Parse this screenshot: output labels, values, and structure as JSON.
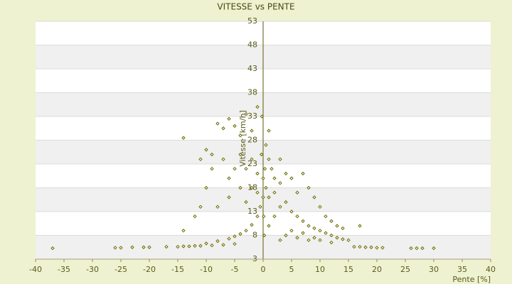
{
  "chart_data": {
    "type": "scatter",
    "title": "VITESSE vs PENTE",
    "x_label": "Pente [%]",
    "y_label": "Vitesse [km/h]",
    "color": "#6b6b00",
    "grid": true,
    "xlim": [
      -40,
      40
    ],
    "xticks": [
      -40,
      -35,
      -30,
      -25,
      -20,
      -15,
      -10,
      -5,
      0,
      5,
      10,
      15,
      20,
      25,
      30,
      35,
      40
    ],
    "ylim": [
      3,
      53
    ],
    "yticks": [
      3,
      8,
      13,
      18,
      23,
      28,
      33,
      38,
      43,
      48,
      53
    ],
    "x": [
      -37,
      -26,
      -25,
      -23,
      -21,
      -20,
      -17,
      -15,
      -14,
      -13,
      -12,
      -11,
      -9,
      -7,
      -5,
      16,
      17,
      18,
      19,
      20,
      21,
      26,
      27,
      28,
      30,
      -10,
      -8,
      -6,
      -5,
      -4,
      -3,
      -2,
      -1,
      -0.5,
      -14,
      -12,
      -11,
      -14,
      -10,
      -9,
      -8,
      -7,
      -6,
      -5,
      -4,
      -3,
      -2,
      -1,
      -0.2,
      1,
      0.5,
      -11,
      -9,
      -7,
      -6,
      -5,
      -4,
      -3,
      -2,
      -1,
      0,
      0.5,
      1,
      1.5,
      2,
      -2,
      -1,
      0,
      1,
      2,
      3,
      4,
      5,
      6,
      -3,
      -4,
      -6,
      -8,
      -10,
      3,
      2,
      1,
      0.2,
      0.1,
      0.3,
      -0.3,
      3,
      4,
      5,
      6,
      7,
      8,
      9,
      10,
      11,
      12,
      13,
      14,
      15,
      7,
      8,
      9,
      10,
      11,
      12,
      13,
      14,
      17,
      4,
      6,
      8,
      10,
      12,
      3,
      5,
      7,
      9
    ],
    "values": [
      5.3,
      5.4,
      5.4,
      5.5,
      5.5,
      5.5,
      5.6,
      5.6,
      5.7,
      5.7,
      5.8,
      5.8,
      5.9,
      6.0,
      6.2,
      5.6,
      5.6,
      5.5,
      5.5,
      5.4,
      5.4,
      5.3,
      5.3,
      5.3,
      5.3,
      6.3,
      6.8,
      7.3,
      7.8,
      8.3,
      9.0,
      10.2,
      12.0,
      14,
      9,
      12,
      14,
      28.5,
      26,
      25,
      31.5,
      30.5,
      32.5,
      31,
      29,
      33.5,
      30,
      35,
      33,
      30,
      27,
      24,
      22,
      24,
      20,
      22,
      25,
      22,
      24,
      21,
      20,
      18,
      24,
      22,
      20,
      18,
      17,
      16,
      16,
      17,
      19,
      21,
      20,
      17,
      15,
      18,
      16,
      14,
      18,
      14,
      12,
      10,
      8,
      12,
      22,
      25,
      24,
      15,
      13,
      12,
      11,
      10,
      9.5,
      9,
      8.5,
      8,
      7.5,
      7.2,
      7,
      21,
      18,
      16,
      14,
      12,
      11,
      10,
      9.5,
      10,
      8,
      7.5,
      7,
      7,
      6.5,
      7,
      9,
      8.5,
      7.5
    ]
  }
}
